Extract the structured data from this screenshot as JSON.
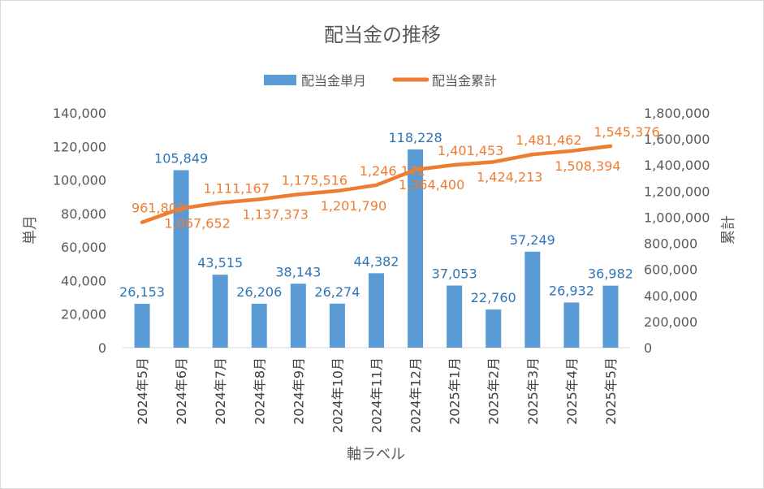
{
  "chart_data": {
    "type": "bar+line",
    "title": "配当金の推移",
    "xlabel": "軸ラベル",
    "ylabel_left": "単月",
    "ylabel_right": "累計",
    "categories": [
      "2024年5月",
      "2024年6月",
      "2024年7月",
      "2024年8月",
      "2024年9月",
      "2024年10月",
      "2024年11月",
      "2024年12月",
      "2025年1月",
      "2025年2月",
      "2025年3月",
      "2025年4月",
      "2025年5月"
    ],
    "series": [
      {
        "name": "配当金単月",
        "type": "bar",
        "axis": "left",
        "color": "#5b9bd5",
        "values": [
          26153,
          105849,
          43515,
          26206,
          38143,
          26274,
          44382,
          118228,
          37053,
          22760,
          57249,
          26932,
          36982
        ],
        "labels": [
          "26,153",
          "105,849",
          "43,515",
          "26,206",
          "38,143",
          "26,274",
          "44,382",
          "118,228",
          "37,053",
          "22,760",
          "57,249",
          "26,932",
          "36,982"
        ]
      },
      {
        "name": "配当金累計",
        "type": "line",
        "axis": "right",
        "color": "#ed7d31",
        "values": [
          961803,
          1067652,
          1111167,
          1137373,
          1175516,
          1201790,
          1246172,
          1364400,
          1401453,
          1424213,
          1481462,
          1508394,
          1545376
        ],
        "labels": [
          "961,803",
          "1,067,652",
          "1,111,167",
          "1,137,373",
          "1,175,516",
          "1,201,790",
          "1,246,172",
          "1,364,400",
          "1,401,453",
          "1,424,213",
          "1,481,462",
          "1,508,394",
          "1,545,376"
        ]
      }
    ],
    "ylim_left": [
      0,
      140000
    ],
    "yticks_left": [
      "0",
      "20,000",
      "40,000",
      "60,000",
      "80,000",
      "100,000",
      "120,000",
      "140,000"
    ],
    "ylim_right": [
      0,
      1800000
    ],
    "yticks_right": [
      "0",
      "200,000",
      "400,000",
      "600,000",
      "800,000",
      "1,000,000",
      "1,200,000",
      "1,400,000",
      "1,600,000",
      "1,800,000"
    ],
    "grid": false,
    "legend_position": "top"
  }
}
